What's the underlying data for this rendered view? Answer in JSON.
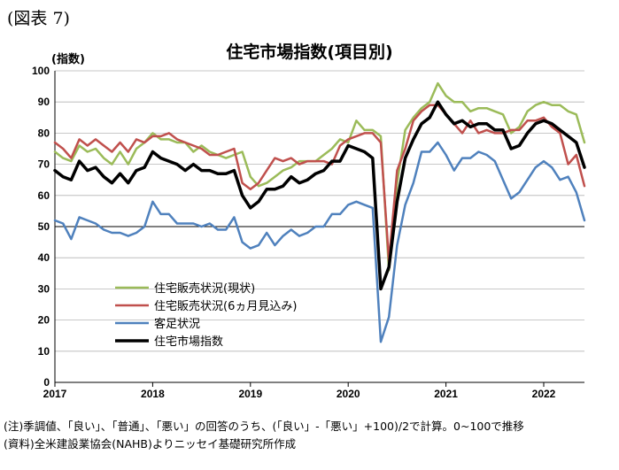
{
  "figure_label": "(図表 7)",
  "notes": {
    "note": "(注)季調値、「良い」、「普通」、「悪い」の回答のうち、(「良い」-「悪い」+100)/2で計算。0~100で推移",
    "source": "(資料)全米建設業協会(NAHB)よりニッセイ基礎研究所作成"
  },
  "chart_data": {
    "type": "line",
    "title": "住宅市場指数(項目別)",
    "ylabel": "(指数)",
    "xlabel": "",
    "ylim": [
      0,
      100
    ],
    "yticks": [
      0,
      10,
      20,
      30,
      40,
      50,
      60,
      70,
      80,
      90,
      100
    ],
    "xlim": [
      2017.0,
      2022.4167
    ],
    "xticks": [
      "2017",
      "2018",
      "2019",
      "2020",
      "2021",
      "2022"
    ],
    "grid": "horizontal",
    "legend_position": "lower-left",
    "x_start": "2017-01",
    "series": [
      {
        "name": "住宅販売状況(現状)",
        "color": "#9BBB59",
        "width": 2.5,
        "values": [
          74,
          72,
          71,
          76,
          74,
          75,
          72,
          70,
          74,
          70,
          75,
          77,
          80,
          78,
          78,
          77,
          77,
          74,
          76,
          74,
          73,
          72,
          73,
          74,
          66,
          63,
          64,
          66,
          68,
          69,
          71,
          71,
          71,
          73,
          75,
          78,
          77,
          84,
          81,
          81,
          79,
          36,
          64,
          81,
          85,
          88,
          90,
          96,
          92,
          90,
          90,
          87,
          88,
          88,
          87,
          86,
          80,
          82,
          87,
          89,
          90,
          89,
          89,
          87,
          86,
          77
        ]
      },
      {
        "name": "住宅販売状況(6ヵ月見込み)",
        "color": "#C0504D",
        "width": 2.5,
        "values": [
          77,
          75,
          72,
          78,
          76,
          78,
          76,
          74,
          77,
          74,
          78,
          77,
          79,
          79,
          80,
          78,
          77,
          76,
          75,
          73,
          73,
          74,
          75,
          64,
          62,
          64,
          68,
          72,
          71,
          72,
          70,
          71,
          71,
          71,
          70,
          76,
          78,
          79,
          80,
          80,
          77,
          39,
          68,
          75,
          84,
          87,
          89,
          89,
          86,
          83,
          80,
          84,
          80,
          81,
          80,
          80,
          81,
          81,
          84,
          84,
          85,
          82,
          80,
          70,
          73,
          63
        ]
      },
      {
        "name": "客足状況",
        "color": "#4F81BD",
        "width": 2.5,
        "values": [
          52,
          51,
          46,
          53,
          52,
          51,
          49,
          48,
          48,
          47,
          48,
          50,
          58,
          54,
          54,
          51,
          51,
          51,
          50,
          51,
          49,
          49,
          53,
          45,
          43,
          44,
          48,
          44,
          47,
          49,
          47,
          48,
          50,
          50,
          54,
          54,
          57,
          58,
          57,
          56,
          13,
          21,
          44,
          57,
          64,
          74,
          74,
          77,
          73,
          68,
          72,
          72,
          74,
          73,
          71,
          65,
          59,
          61,
          65,
          69,
          71,
          69,
          65,
          66,
          61,
          52
        ]
      },
      {
        "name": "住宅市場指数",
        "color": "#000000",
        "width": 3.5,
        "values": [
          68,
          66,
          65,
          71,
          68,
          69,
          66,
          64,
          67,
          64,
          68,
          69,
          74,
          72,
          71,
          70,
          68,
          70,
          68,
          68,
          67,
          67,
          68,
          60,
          56,
          58,
          62,
          62,
          63,
          66,
          64,
          65,
          67,
          68,
          71,
          71,
          76,
          75,
          74,
          72,
          30,
          37,
          58,
          72,
          78,
          83,
          85,
          90,
          86,
          83,
          84,
          82,
          83,
          83,
          81,
          81,
          75,
          76,
          80,
          83,
          84,
          83,
          81,
          79,
          77,
          69
        ]
      }
    ]
  }
}
